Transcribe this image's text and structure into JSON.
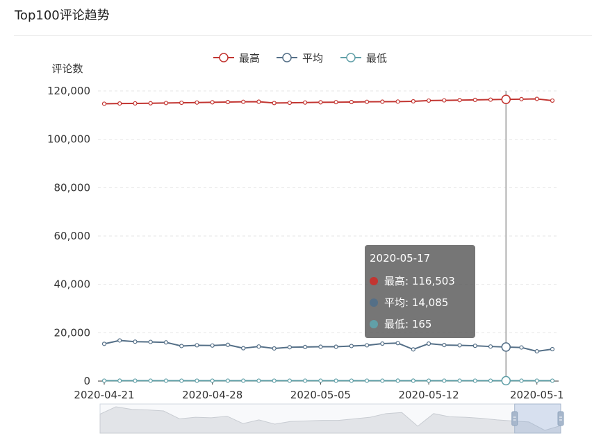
{
  "page_title": "Top100评论趋势",
  "colors": {
    "max": "#c23531",
    "avg": "#546f87",
    "min": "#61a0a8"
  },
  "chart_data": {
    "type": "line",
    "ylabel": "评论数",
    "ylim": [
      0,
      120000
    ],
    "yticks": [
      "0",
      "20,000",
      "40,000",
      "60,000",
      "80,000",
      "100,000",
      "120,000"
    ],
    "grid": "horizontal-dashed",
    "legend_position": "top-center",
    "x": [
      "2020-04-21",
      "2020-04-22",
      "2020-04-23",
      "2020-04-24",
      "2020-04-25",
      "2020-04-26",
      "2020-04-27",
      "2020-04-28",
      "2020-04-29",
      "2020-04-30",
      "2020-05-01",
      "2020-05-02",
      "2020-05-03",
      "2020-05-04",
      "2020-05-05",
      "2020-05-06",
      "2020-05-07",
      "2020-05-08",
      "2020-05-09",
      "2020-05-10",
      "2020-05-11",
      "2020-05-12",
      "2020-05-13",
      "2020-05-14",
      "2020-05-15",
      "2020-05-16",
      "2020-05-17",
      "2020-05-18",
      "2020-05-19",
      "2020-05-20"
    ],
    "xtick_labels": [
      "2020-04-21",
      "2020-04-28",
      "2020-05-05",
      "2020-05-12",
      "2020-05-1"
    ],
    "series": [
      {
        "name": "最高",
        "color_key": "max",
        "values": [
          114700,
          114800,
          114850,
          114900,
          115000,
          115100,
          115200,
          115300,
          115400,
          115500,
          115550,
          115000,
          115100,
          115200,
          115300,
          115350,
          115400,
          115500,
          115550,
          115600,
          115700,
          116000,
          116100,
          116200,
          116300,
          116400,
          116503,
          116600,
          116700,
          116000
        ]
      },
      {
        "name": "平均",
        "color_key": "avg",
        "values": [
          15400,
          16800,
          16300,
          16200,
          16000,
          14500,
          14800,
          14700,
          15000,
          13600,
          14300,
          13500,
          14000,
          14100,
          14200,
          14200,
          14500,
          14800,
          15500,
          15700,
          13100,
          15500,
          14900,
          14800,
          14600,
          14300,
          14085,
          13900,
          12300,
          13200
        ]
      },
      {
        "name": "最低",
        "color_key": "min",
        "values": [
          165,
          170,
          168,
          166,
          165,
          164,
          165,
          166,
          167,
          165,
          164,
          163,
          165,
          166,
          165,
          165,
          166,
          167,
          168,
          169,
          170,
          168,
          167,
          166,
          165,
          165,
          165,
          164,
          163,
          165
        ]
      }
    ],
    "tooltip": {
      "date": "2020-05-17",
      "rows": [
        {
          "label": "最高: 116,503",
          "color_key": "max"
        },
        {
          "label": "平均: 14,085",
          "color_key": "avg"
        },
        {
          "label": "最低: 165",
          "color_key": "min"
        }
      ]
    },
    "zoom": {
      "start": 0,
      "end": 100,
      "selected_start": 90,
      "selected_end": 100
    }
  }
}
